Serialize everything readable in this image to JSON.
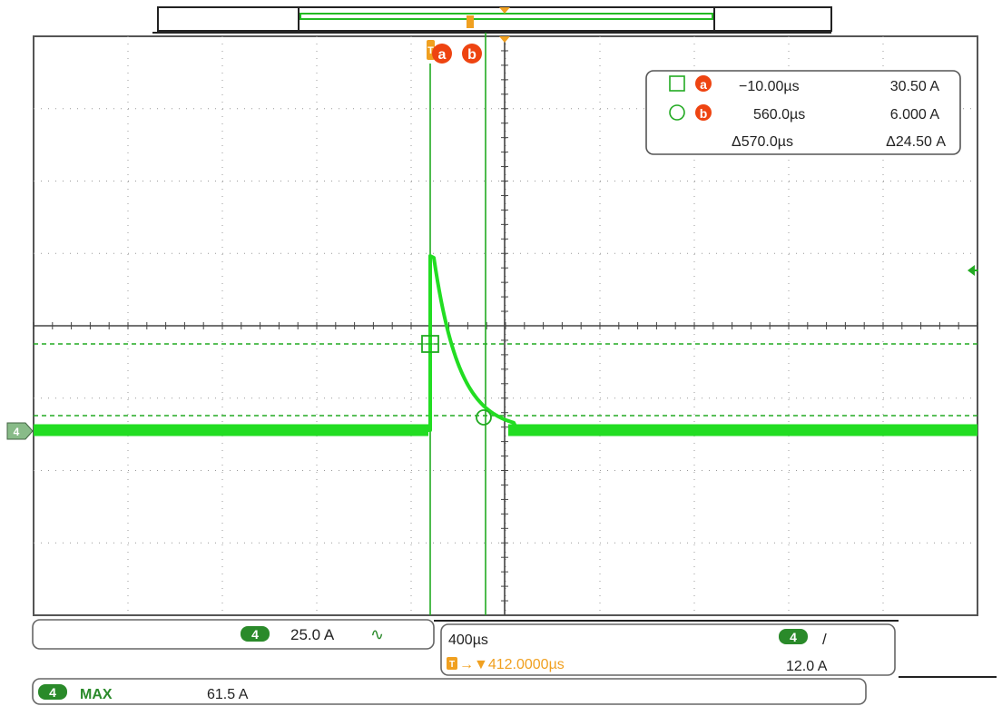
{
  "channel": {
    "number": "4",
    "color": "#22cc22",
    "ground_marker": "4"
  },
  "cursors": {
    "a": {
      "label": "a",
      "shape": "square-icon",
      "time": "−10.00µs",
      "value": "30.50 A"
    },
    "b": {
      "label": "b",
      "shape": "circle-icon",
      "time": "560.0µs",
      "value": "6.000 A"
    },
    "delta": {
      "time": "Δ570.0µs",
      "value": "Δ24.50 A"
    },
    "marker_color": "#ee4411"
  },
  "trigger_marker": "T",
  "vertical": {
    "channel": "4",
    "scale": "25.0 A",
    "coupling_icon": "bandwidth-limit-icon",
    "coupling_glyph": "∿"
  },
  "horizontal": {
    "scale": "400µs",
    "trigger_label": "T",
    "position": "→▼412.0000µs",
    "trigger_channel": "4",
    "trigger_slope_glyph": "/",
    "trigger_level": "12.0 A"
  },
  "measurement": {
    "channel": "4",
    "name": "MAX",
    "value": "61.5 A"
  },
  "colors": {
    "trace": "#22dd22",
    "cursor_line": "#22aa22",
    "grid": "#888888",
    "trigger": "#f0a020",
    "panel_border": "#666666"
  }
}
